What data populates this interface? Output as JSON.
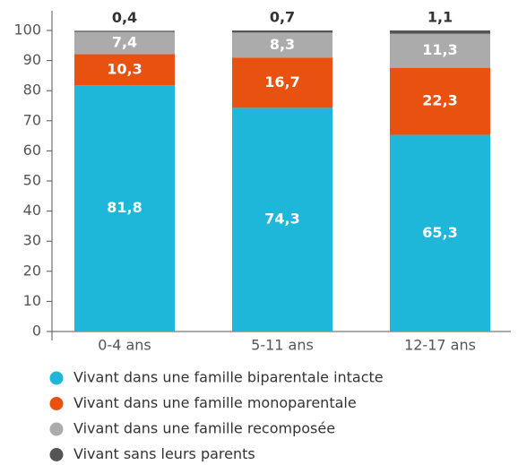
{
  "chart_data": {
    "type": "stacked-bar",
    "categories": [
      "0-4 ans",
      "5-11 ans",
      "12-17 ans"
    ],
    "series": [
      {
        "name": "Vivant dans une famille biparentale intacte",
        "color": "#1fb7d9",
        "values": [
          81.8,
          74.3,
          65.3
        ],
        "value_labels": [
          "81,8",
          "74,3",
          "65,3"
        ]
      },
      {
        "name": "Vivant dans une famille monoparentale",
        "color": "#e8510f",
        "values": [
          10.3,
          16.7,
          22.3
        ],
        "value_labels": [
          "10,3",
          "16,7",
          "22,3"
        ]
      },
      {
        "name": "Vivant dans une famille recomposée",
        "color": "#ababab",
        "values": [
          7.4,
          8.3,
          11.3
        ],
        "value_labels": [
          "7,4",
          "8,3",
          "11,3"
        ]
      },
      {
        "name": "Vivant sans leurs parents",
        "color": "#555555",
        "values": [
          0.4,
          0.7,
          1.1
        ],
        "value_labels": [
          "0,4",
          "0,7",
          "1,1"
        ]
      }
    ],
    "ylim": [
      0,
      100
    ],
    "yticks": [
      0,
      10,
      20,
      30,
      40,
      50,
      60,
      70,
      80,
      90,
      100
    ]
  }
}
